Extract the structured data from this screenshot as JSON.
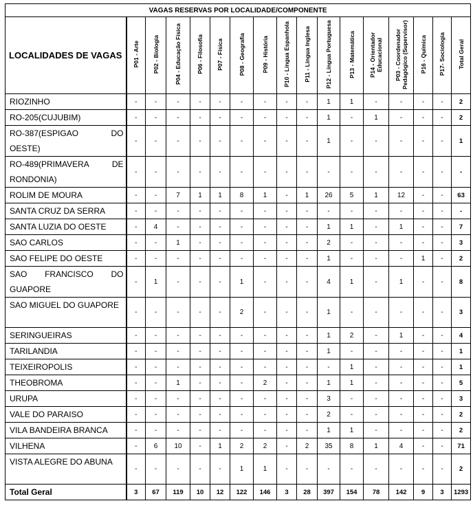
{
  "title": "VAGAS RESERVAS POR LOCALIDADE/COMPONENTE",
  "locality_header": "LOCALIDADES DE VAGAS",
  "columns": [
    "P01 - Arte",
    "P02 - Biologia",
    "P04 - Educação Física",
    "P06 - Filosofia",
    "P07 - Física",
    "P08 - Geografia",
    "P09 - História",
    "P10 - Língua Espanhola",
    "P11 - Língua Inglesa",
    "P12 - Língua Portuguesa",
    "P13 - Matemática",
    "P14 - Orientador Educacional",
    "P03 - Coordenador Pedagógico (Supervisor)",
    "P16 - Química",
    "P17- Sociologia",
    "Total Geral"
  ],
  "rows": [
    {
      "name": "RIOZINHO",
      "values": [
        "-",
        "-",
        "-",
        "-",
        "-",
        "-",
        "-",
        "-",
        "-",
        "1",
        "1",
        "-",
        "-",
        "-",
        "-",
        "2"
      ]
    },
    {
      "name": "RO-205(CUJUBIM)",
      "values": [
        "-",
        "-",
        "-",
        "-",
        "-",
        "-",
        "-",
        "-",
        "-",
        "1",
        "-",
        "1",
        "-",
        "-",
        "-",
        "2"
      ]
    },
    {
      "name": "RO-387(ESPIGAO DO OESTE)",
      "values": [
        "-",
        "-",
        "-",
        "-",
        "-",
        "-",
        "-",
        "-",
        "-",
        "1",
        "-",
        "-",
        "-",
        "-",
        "-",
        "1"
      ]
    },
    {
      "name": "RO-489(PRIMAVERA DE RONDONIA)",
      "values": [
        "-",
        "-",
        "-",
        "-",
        "-",
        "-",
        "-",
        "-",
        "-",
        "-",
        "-",
        "-",
        "-",
        "-",
        "-",
        "-"
      ]
    },
    {
      "name": "ROLIM DE MOURA",
      "values": [
        "-",
        "-",
        "7",
        "1",
        "1",
        "8",
        "1",
        "-",
        "1",
        "26",
        "5",
        "1",
        "12",
        "-",
        "-",
        "63"
      ]
    },
    {
      "name": "SANTA CRUZ DA SERRA",
      "values": [
        "-",
        "-",
        "-",
        "-",
        "-",
        "-",
        "-",
        "-",
        "-",
        "-",
        "-",
        "-",
        "-",
        "-",
        "-",
        "-"
      ]
    },
    {
      "name": "SANTA LUZIA DO OESTE",
      "values": [
        "-",
        "4",
        "-",
        "-",
        "-",
        "-",
        "-",
        "-",
        "-",
        "1",
        "1",
        "-",
        "1",
        "-",
        "-",
        "7"
      ]
    },
    {
      "name": "SAO CARLOS",
      "values": [
        "-",
        "-",
        "1",
        "-",
        "-",
        "-",
        "-",
        "-",
        "-",
        "2",
        "-",
        "-",
        "-",
        "-",
        "-",
        "3"
      ]
    },
    {
      "name": "SAO FELIPE DO OESTE",
      "values": [
        "-",
        "-",
        "-",
        "-",
        "-",
        "-",
        "-",
        "-",
        "-",
        "1",
        "-",
        "-",
        "-",
        "1",
        "-",
        "2"
      ]
    },
    {
      "name": "SAO FRANCISCO DO GUAPORE",
      "values": [
        "-",
        "1",
        "-",
        "-",
        "-",
        "1",
        "-",
        "-",
        "-",
        "4",
        "1",
        "-",
        "1",
        "-",
        "-",
        "8"
      ]
    },
    {
      "name": "SAO MIGUEL DO GUAPORE",
      "values": [
        "-",
        "-",
        "-",
        "-",
        "-",
        "2",
        "-",
        "-",
        "-",
        "1",
        "-",
        "-",
        "-",
        "-",
        "-",
        "3"
      ]
    },
    {
      "name": "SERINGUEIRAS",
      "values": [
        "-",
        "-",
        "-",
        "-",
        "-",
        "-",
        "-",
        "-",
        "-",
        "1",
        "2",
        "-",
        "1",
        "-",
        "-",
        "4"
      ]
    },
    {
      "name": "TARILANDIA",
      "values": [
        "-",
        "-",
        "-",
        "-",
        "-",
        "-",
        "-",
        "-",
        "-",
        "1",
        "-",
        "-",
        "-",
        "-",
        "-",
        "1"
      ]
    },
    {
      "name": "TEIXEIROPOLIS",
      "values": [
        "-",
        "-",
        "-",
        "-",
        "-",
        "-",
        "-",
        "-",
        "-",
        "-",
        "1",
        "-",
        "-",
        "-",
        "-",
        "1"
      ]
    },
    {
      "name": "THEOBROMA",
      "values": [
        "-",
        "-",
        "1",
        "-",
        "-",
        "-",
        "2",
        "-",
        "-",
        "1",
        "1",
        "-",
        "-",
        "-",
        "-",
        "5"
      ]
    },
    {
      "name": "URUPA",
      "values": [
        "-",
        "-",
        "-",
        "-",
        "-",
        "-",
        "-",
        "-",
        "-",
        "3",
        "-",
        "-",
        "-",
        "-",
        "-",
        "3"
      ]
    },
    {
      "name": "VALE DO PARAISO",
      "values": [
        "-",
        "-",
        "-",
        "-",
        "-",
        "-",
        "-",
        "-",
        "-",
        "2",
        "-",
        "-",
        "-",
        "-",
        "-",
        "2"
      ]
    },
    {
      "name": "VILA BANDEIRA BRANCA",
      "values": [
        "-",
        "-",
        "-",
        "-",
        "-",
        "-",
        "-",
        "-",
        "-",
        "1",
        "1",
        "-",
        "-",
        "-",
        "-",
        "2"
      ]
    },
    {
      "name": "VILHENA",
      "values": [
        "-",
        "6",
        "10",
        "-",
        "1",
        "2",
        "2",
        "-",
        "2",
        "35",
        "8",
        "1",
        "4",
        "-",
        "-",
        "71"
      ]
    },
    {
      "name": "VISTA ALEGRE DO ABUNA",
      "values": [
        "-",
        "-",
        "-",
        "-",
        "-",
        "1",
        "1",
        "-",
        "-",
        "-",
        "-",
        "-",
        "-",
        "-",
        "-",
        "2"
      ]
    }
  ],
  "total": {
    "name": "Total Geral",
    "values": [
      "3",
      "67",
      "119",
      "10",
      "12",
      "122",
      "146",
      "3",
      "28",
      "397",
      "154",
      "78",
      "142",
      "9",
      "3",
      "1293"
    ]
  }
}
